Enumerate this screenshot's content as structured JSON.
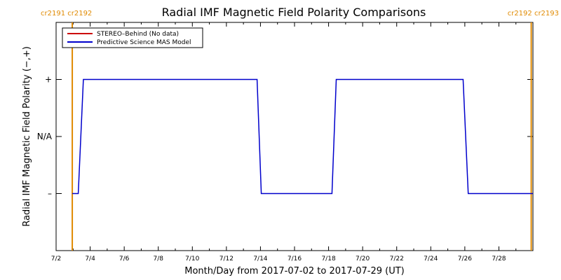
{
  "chart_data": {
    "type": "line",
    "title": "Radial IMF Magnetic Field Polarity Comparisons",
    "xlabel": "Month/Day from 2017-07-02 to 2017-07-29 (UT)",
    "ylabel": "Radial IMF Magnetic Field Polarity (−,+)",
    "xlim": [
      0,
      28
    ],
    "ylim": [
      -2,
      2
    ],
    "x_tick_values": [
      0,
      2,
      4,
      6,
      8,
      10,
      12,
      14,
      16,
      18,
      20,
      22,
      24,
      26
    ],
    "x_tick_labels": [
      "7/2",
      "7/4",
      "7/6",
      "7/8",
      "7/10",
      "7/12",
      "7/14",
      "7/16",
      "7/18",
      "7/20",
      "7/22",
      "7/24",
      "7/26",
      "7/28"
    ],
    "y_tick_values": [
      1,
      0,
      -1
    ],
    "y_tick_labels": [
      "+",
      "N/A",
      "–"
    ],
    "grid": false,
    "legend_position": "top-left",
    "series": [
      {
        "name": "STEREO–Behind (No data)",
        "color": "#cc0000",
        "x": [],
        "y": []
      },
      {
        "name": "Predictive Science MAS Model",
        "color": "#0000cc",
        "x": [
          0.95,
          1.3,
          1.6,
          11.8,
          12.05,
          16.2,
          16.45,
          23.9,
          24.2,
          28.0
        ],
        "y": [
          -1,
          -1,
          1,
          1,
          -1,
          -1,
          1,
          1,
          -1,
          -1
        ]
      }
    ],
    "carrington_markers": [
      {
        "x": 0.95,
        "color": "#e08a00"
      },
      {
        "x": 27.9,
        "color": "#e08a00"
      }
    ],
    "carrington_labels": {
      "left": "cr2191 cr2192",
      "right": "cr2192 cr2193"
    }
  }
}
